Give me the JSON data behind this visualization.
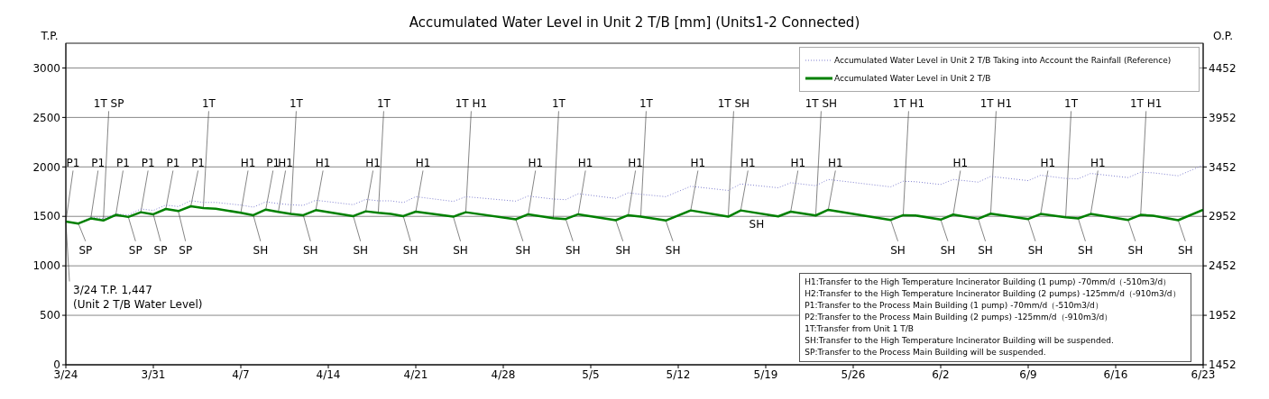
{
  "chart_data": {
    "type": "line",
    "title": "Accumulated Water Level in Unit 2 T/B [mm] (Units1-2 Connected)",
    "ylabel": "T.P.",
    "y2label": "O.P.",
    "x": [
      "--03-24",
      "--03-25",
      "--03-26",
      "--03-27",
      "--03-28",
      "--03-29",
      "--03-30",
      "--03-31",
      "--04-01",
      "--04-02",
      "--04-03",
      "--04-04",
      "--04-05",
      "--04-07",
      "--04-08",
      "--04-09",
      "--04-10",
      "--04-11",
      "--04-12",
      "--04-13",
      "--04-16",
      "--04-17",
      "--04-18",
      "--04-19",
      "--04-20",
      "--04-21",
      "--04-24",
      "--04-25",
      "--04-29",
      "--04-30",
      "--05-02",
      "--05-03",
      "--05-04",
      "--05-07",
      "--05-08",
      "--05-09",
      "--05-11",
      "--05-13",
      "--05-16",
      "--05-17",
      "--05-20",
      "--05-21",
      "--05-23",
      "--05-24",
      "--05-29",
      "--05-30",
      "--05-31",
      "--06-02",
      "--06-03",
      "--06-05",
      "--06-06",
      "--06-09",
      "--06-10",
      "--06-12",
      "--06-13",
      "--06-14",
      "--06-17",
      "--06-18",
      "--06-19",
      "--06-21",
      "--06-23"
    ],
    "series": [
      {
        "name": "Accumulated Water Level in Unit 2 T/B Taking into Account the Rainfall (Reference)",
        "color": "#8080d0",
        "line_style": "dotted",
        "values": [
          1447,
          1428,
          1491,
          1479,
          1524,
          1515,
          1575,
          1560,
          1614,
          1599,
          1659,
          1641,
          1641,
          1614,
          1593,
          1647,
          1629,
          1617,
          1611,
          1663,
          1618,
          1672,
          1657,
          1657,
          1639,
          1699,
          1651,
          1699,
          1654,
          1705,
          1675,
          1669,
          1729,
          1681,
          1738,
          1723,
          1699,
          1804,
          1762,
          1828,
          1789,
          1840,
          1810,
          1873,
          1798,
          1855,
          1850,
          1822,
          1873,
          1846,
          1904,
          1861,
          1916,
          1883,
          1880,
          1934,
          1892,
          1946,
          1940,
          1910,
          2018
        ]
      },
      {
        "name": "Accumulated Water Level in Unit 2 T/B",
        "color": "#008000",
        "line_style": "solid",
        "values": [
          1447,
          1428,
          1479,
          1458,
          1515,
          1494,
          1542,
          1521,
          1575,
          1554,
          1602,
          1584,
          1578,
          1536,
          1512,
          1569,
          1545,
          1524,
          1512,
          1563,
          1503,
          1551,
          1536,
          1524,
          1503,
          1548,
          1497,
          1542,
          1470,
          1521,
          1482,
          1473,
          1521,
          1461,
          1512,
          1497,
          1458,
          1560,
          1497,
          1560,
          1500,
          1548,
          1509,
          1566,
          1464,
          1512,
          1509,
          1467,
          1518,
          1476,
          1527,
          1473,
          1524,
          1491,
          1479,
          1524,
          1464,
          1515,
          1506,
          1461,
          1566
        ]
      }
    ],
    "xlim": [
      "--03-24",
      "--06-23"
    ],
    "xticks": [
      {
        "value": "--03-24",
        "label": "3/24"
      },
      {
        "value": "--03-31",
        "label": "3/31"
      },
      {
        "value": "--04-07",
        "label": "4/7"
      },
      {
        "value": "--04-14",
        "label": "4/14"
      },
      {
        "value": "--04-21",
        "label": "4/21"
      },
      {
        "value": "--04-28",
        "label": "4/28"
      },
      {
        "value": "--05-05",
        "label": "5/5"
      },
      {
        "value": "--05-12",
        "label": "5/12"
      },
      {
        "value": "--05-19",
        "label": "5/19"
      },
      {
        "value": "--05-26",
        "label": "5/26"
      },
      {
        "value": "--06-02",
        "label": "6/2"
      },
      {
        "value": "--06-09",
        "label": "6/9"
      },
      {
        "value": "--06-16",
        "label": "6/16"
      },
      {
        "value": "--06-23",
        "label": "6/23"
      }
    ],
    "ylim": [
      0,
      3250
    ],
    "yticks": [
      0,
      500,
      1000,
      1500,
      2000,
      2500,
      3000
    ],
    "y2lim": [
      1452,
      4702
    ],
    "y2ticks": [
      1452,
      1952,
      2452,
      2952,
      3452,
      3952,
      4452
    ],
    "grid": "y",
    "legend": "top right",
    "marker": "none",
    "annotations": [
      {
        "text": "3/24  T.P. 1,447\n(Unit 2 T/B Water Level)",
        "x": "--03-24",
        "y": 1447
      },
      {
        "text": "P1",
        "x": "--03-24",
        "y": 1447
      },
      {
        "text": "SP",
        "x": "--03-25",
        "y": 1428
      },
      {
        "text": "P1",
        "x": "--03-26",
        "y": 1479
      },
      {
        "text": "1T SP",
        "x": "--03-27",
        "y": 1458
      },
      {
        "text": "P1",
        "x": "--03-28",
        "y": 1515
      },
      {
        "text": "SP",
        "x": "--03-29",
        "y": 1494
      },
      {
        "text": "P1",
        "x": "--03-30",
        "y": 1542
      },
      {
        "text": "SP",
        "x": "--03-31",
        "y": 1521
      },
      {
        "text": "P1",
        "x": "--04-01",
        "y": 1575
      },
      {
        "text": "SP",
        "x": "--04-02",
        "y": 1554
      },
      {
        "text": "P1",
        "x": "--04-03",
        "y": 1602
      },
      {
        "text": "1T",
        "x": "--04-04",
        "y": 1584
      },
      {
        "text": "H1",
        "x": "--04-07",
        "y": 1536
      },
      {
        "text": "SH",
        "x": "--04-08",
        "y": 1512
      },
      {
        "text": "P1",
        "x": "--04-09",
        "y": 1569
      },
      {
        "text": "H1",
        "x": "--04-10",
        "y": 1545
      },
      {
        "text": "1T",
        "x": "--04-11",
        "y": 1524
      },
      {
        "text": "SH",
        "x": "--04-12",
        "y": 1512
      },
      {
        "text": "H1",
        "x": "--04-13",
        "y": 1563
      },
      {
        "text": "SH",
        "x": "--04-16",
        "y": 1503
      },
      {
        "text": "H1",
        "x": "--04-17",
        "y": 1551
      },
      {
        "text": "1T",
        "x": "--04-18",
        "y": 1536
      },
      {
        "text": "SH",
        "x": "--04-20",
        "y": 1503
      },
      {
        "text": "H1",
        "x": "--04-21",
        "y": 1548
      },
      {
        "text": "SH",
        "x": "--04-24",
        "y": 1497
      },
      {
        "text": "1T H1",
        "x": "--04-25",
        "y": 1542
      },
      {
        "text": "SH",
        "x": "--04-29",
        "y": 1470
      },
      {
        "text": "H1",
        "x": "--04-30",
        "y": 1521
      },
      {
        "text": "1T",
        "x": "--05-02",
        "y": 1482
      },
      {
        "text": "SH",
        "x": "--05-03",
        "y": 1473
      },
      {
        "text": "H1",
        "x": "--05-04",
        "y": 1521
      },
      {
        "text": "SH",
        "x": "--05-07",
        "y": 1461
      },
      {
        "text": "H1",
        "x": "--05-08",
        "y": 1512
      },
      {
        "text": "1T",
        "x": "--05-09",
        "y": 1497
      },
      {
        "text": "SH",
        "x": "--05-11",
        "y": 1458
      },
      {
        "text": "H1",
        "x": "--05-13",
        "y": 1560
      },
      {
        "text": "1T SH",
        "x": "--05-16",
        "y": 1497
      },
      {
        "text": "H1",
        "x": "--05-17",
        "y": 1560
      },
      {
        "text": "SH",
        "x": "--05-20",
        "y": 1500
      },
      {
        "text": "H1",
        "x": "--05-21",
        "y": 1548
      },
      {
        "text": "1T SH",
        "x": "--05-23",
        "y": 1509
      },
      {
        "text": "H1",
        "x": "--05-24",
        "y": 1566
      },
      {
        "text": "SH",
        "x": "--05-29",
        "y": 1464
      },
      {
        "text": "1T H1",
        "x": "--05-30",
        "y": 1512
      },
      {
        "text": "SH",
        "x": "--06-02",
        "y": 1467
      },
      {
        "text": "H1",
        "x": "--06-03",
        "y": 1518
      },
      {
        "text": "SH",
        "x": "--06-05",
        "y": 1476
      },
      {
        "text": "1T H1",
        "x": "--06-06",
        "y": 1527
      },
      {
        "text": "SH",
        "x": "--06-09",
        "y": 1473
      },
      {
        "text": "H1",
        "x": "--06-10",
        "y": 1524
      },
      {
        "text": "1T",
        "x": "--06-12",
        "y": 1491
      },
      {
        "text": "SH",
        "x": "--06-13",
        "y": 1479
      },
      {
        "text": "H1",
        "x": "--06-14",
        "y": 1524
      },
      {
        "text": "SH",
        "x": "--06-17",
        "y": 1464
      },
      {
        "text": "1T H1",
        "x": "--06-18",
        "y": 1515
      },
      {
        "text": "SH",
        "x": "--06-21",
        "y": 1461
      },
      "H1:Transfer to the High Temperature Incinerator Building  (1 pump) -70mm/d（-510m3/d）",
      "H2:Transfer to the High Temperature Incinerator Building  (2 pumps)  -125mm/d（-910m3/d）",
      "P1:Transfer to the Process Main Building (1 pump)  -70mm/d（-510m3/d）",
      "P2:Transfer to the Process Main Building (2 pumps)  -125mm/d（-910m3/d）",
      "1T:Transfer from Unit 1 T/B",
      "SH:Transfer to the High Temperature Incinerator Building will be suspended.",
      "SP:Transfer to the Process Main Building will be suspended."
    ]
  }
}
